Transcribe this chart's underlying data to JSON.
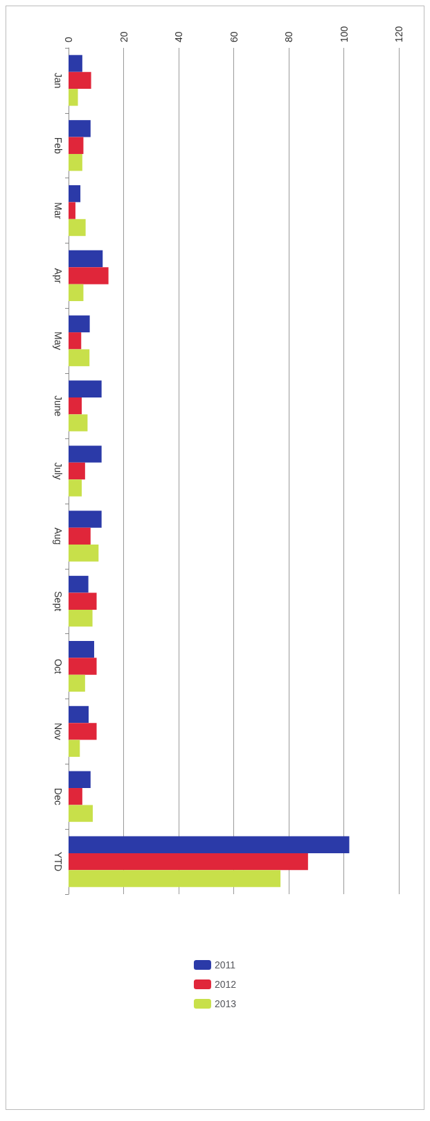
{
  "chart_data": {
    "type": "bar",
    "orientation": "horizontal",
    "categories": [
      "Jan",
      "Feb",
      "Mar",
      "Apr",
      "May",
      "June",
      "July",
      "Aug",
      "Sept",
      "Oct",
      "Nov",
      "Dec",
      "YTD"
    ],
    "series": [
      {
        "name": "2011",
        "color": "#2b3aa8",
        "values": [
          5,
          8,
          4.3,
          12.4,
          7.7,
          12,
          12,
          12,
          7.2,
          9.3,
          7.3,
          8,
          102
        ]
      },
      {
        "name": "2012",
        "color": "#e0263a",
        "values": [
          8.2,
          5.4,
          2.5,
          14.5,
          4.6,
          4.8,
          6,
          8,
          10.2,
          10.2,
          10.2,
          5,
          87
        ]
      },
      {
        "name": "2013",
        "color": "#c8e04a",
        "values": [
          3.4,
          5,
          6.2,
          5.4,
          7.6,
          6.9,
          4.8,
          10.9,
          8.7,
          6,
          4.1,
          8.8,
          77
        ]
      }
    ],
    "xlim": [
      0,
      120
    ],
    "xticks": [
      0,
      20,
      40,
      60,
      80,
      100,
      120
    ],
    "grid": "x",
    "legend": "bottom"
  }
}
